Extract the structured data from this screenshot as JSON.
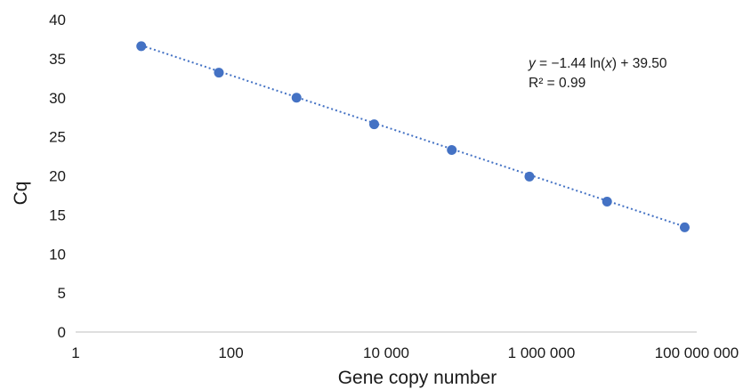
{
  "chart_data": {
    "type": "scatter",
    "xlabel": "Gene copy number",
    "ylabel": "Cq",
    "x_scale": "log",
    "xlim": [
      1,
      100000000
    ],
    "ylim": [
      0,
      40
    ],
    "x_ticks": [
      {
        "value": 1,
        "label": "1"
      },
      {
        "value": 100,
        "label": "100"
      },
      {
        "value": 10000,
        "label": "10 000"
      },
      {
        "value": 1000000,
        "label": "1 000 000"
      },
      {
        "value": 100000000,
        "label": "100 000 000"
      }
    ],
    "y_ticks": [
      0,
      5,
      10,
      15,
      20,
      25,
      30,
      35,
      40
    ],
    "grid": false,
    "series": [
      {
        "color": "#4472c4",
        "points": [
          {
            "x": 7,
            "y": 36.6
          },
          {
            "x": 70,
            "y": 33.2
          },
          {
            "x": 700,
            "y": 30.0
          },
          {
            "x": 7000,
            "y": 26.6
          },
          {
            "x": 70000,
            "y": 23.3
          },
          {
            "x": 700000,
            "y": 19.9
          },
          {
            "x": 7000000,
            "y": 16.7
          },
          {
            "x": 70000000,
            "y": 13.4
          }
        ]
      }
    ],
    "trendline": {
      "type": "logarithmic",
      "slope": -1.44,
      "intercept": 39.5,
      "style": "dotted",
      "color": "#4472c4"
    },
    "annotation": {
      "equation_y": "y",
      "equation_mid": " = −1.44 ln(",
      "equation_x": "x",
      "equation_end": ") + 39.50",
      "r_squared": "R² = 0.99"
    }
  }
}
